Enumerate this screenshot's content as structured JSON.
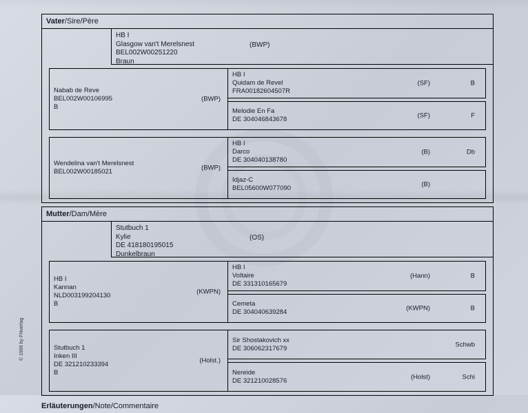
{
  "copyright": "© 1999 by FNverlag",
  "sire": {
    "header_bold": "Vater",
    "header_rest": "/Sire/Père",
    "main": {
      "l1": "HB I",
      "l2": "Glasgow van't Merelsnest",
      "l3": "BEL002W00251220",
      "l4": "Braun",
      "tag": "(BWP)"
    },
    "g2a": {
      "l1": "Nabab de Reve",
      "l2": "BEL002W00106995",
      "l3": "B",
      "tag": "(BWP)"
    },
    "g2b": {
      "l1": "Wendelina van't Merelsnest",
      "l2": "BEL002W00185021",
      "tag": "(BWP)"
    },
    "g3a": {
      "l1": "HB I",
      "l2": "Quidam de Revel",
      "l3": "FRA00182604507R",
      "t1": "(SF)",
      "t2": "B"
    },
    "g3b": {
      "l1": "Melodie En Fa",
      "l2": "DE 304046843678",
      "t1": "(SF)",
      "t2": "F"
    },
    "g3c": {
      "l1": "HB I",
      "l2": "Darco",
      "l3": "DE 304040138780",
      "t1": "(B)",
      "t2": "Db"
    },
    "g3d": {
      "l1": "Idjaz-C",
      "l2": "BEL05600W077090",
      "t1": "(B)",
      "t2": ""
    }
  },
  "dam": {
    "header_bold": "Mutter",
    "header_rest": "/Dam/Mère",
    "main": {
      "l1": "Stutbuch 1",
      "l2": "Kylie",
      "l3": "DE 418180195015",
      "l4": "Dunkelbraun",
      "tag": "(OS)"
    },
    "g2a": {
      "l1": "HB I",
      "l2": "Kannan",
      "l3": "NLD003199204130",
      "l4": "B",
      "tag": "(KWPN)"
    },
    "g2b": {
      "l1": "Stutbuch 1",
      "l2": "Inken III",
      "l3": "DE 321210233394",
      "l4": "B",
      "tag": "(Holst.)"
    },
    "g3a": {
      "l1": "HB I",
      "l2": "Voltaire",
      "l3": "DE 331310165679",
      "t1": "(Hann)",
      "t2": "B"
    },
    "g3b": {
      "l1": "Cemeta",
      "l2": "DE 304040639284",
      "t1": "(KWPN)",
      "t2": "B"
    },
    "g3c": {
      "l1": "Sir Shostakovich  xx",
      "l2": "DE 306062317679",
      "t1": "",
      "t2": "Schwb"
    },
    "g3d": {
      "l1": "Nereide",
      "l2": "DE 321210028576",
      "t1": "(Holst)",
      "t2": "Schi"
    }
  },
  "footer_bold": "Erläuterungen",
  "footer_rest": "/Note/Commentaire"
}
